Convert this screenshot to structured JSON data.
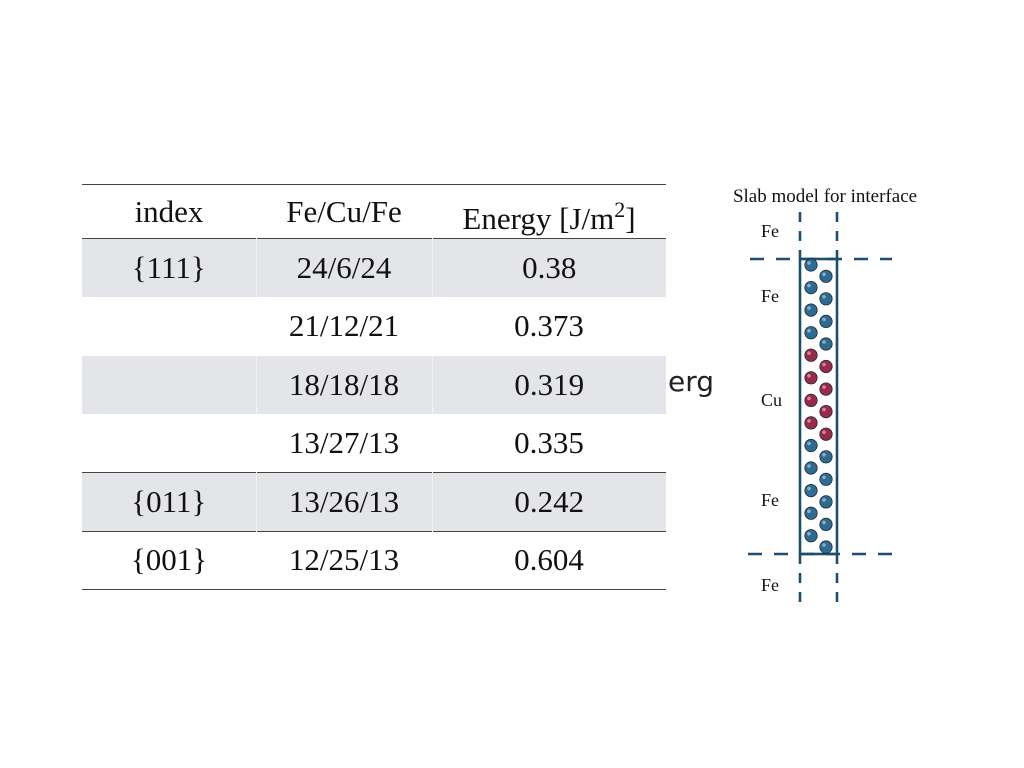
{
  "table": {
    "headers": [
      "index",
      "Fe/Cu/Fe",
      "Energy [J/m",
      "2",
      "]"
    ],
    "rows": [
      {
        "index": "{111}",
        "composition": "24/6/24",
        "energy": "0.38"
      },
      {
        "index": "",
        "composition": "21/12/21",
        "energy": "0.373"
      },
      {
        "index": "",
        "composition": "18/18/18",
        "energy": "0.319"
      },
      {
        "index": "",
        "composition": "13/27/13",
        "energy": "0.335"
      },
      {
        "index": "{011}",
        "composition": "13/26/13",
        "energy": "0.242"
      },
      {
        "index": "{001}",
        "composition": "12/25/13",
        "energy": "0.604"
      }
    ]
  },
  "fragment_text": "erg",
  "diagram": {
    "title": "Slab model for interface",
    "labels": [
      "Fe",
      "Fe",
      "Cu",
      "Fe",
      "Fe"
    ],
    "colors": {
      "fe_atom": "#2e6b91",
      "cu_atom": "#9a2a48",
      "frame": "#1f4d6e"
    }
  }
}
